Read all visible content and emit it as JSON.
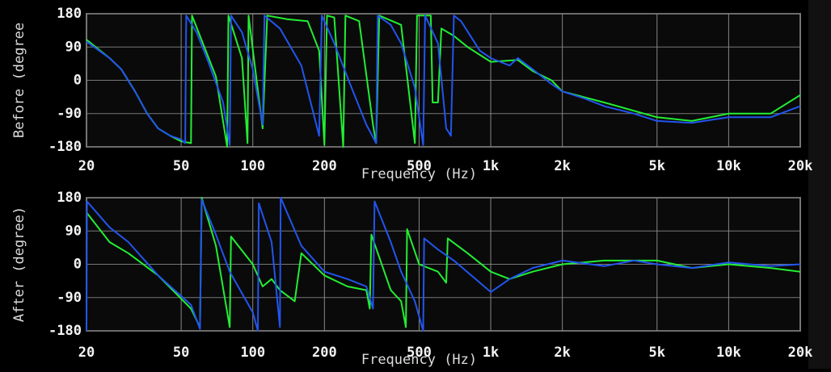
{
  "chart_data": [
    {
      "type": "line",
      "ylabel": "Before (degree",
      "xlabel": "Frequency (Hz)",
      "xscale": "log",
      "xlim": [
        20,
        20000
      ],
      "ylim": [
        -180,
        180
      ],
      "grid": true,
      "xticks": [
        20,
        50,
        100,
        200,
        500,
        {
          "value": 1000,
          "label": "1k"
        },
        {
          "value": 2000,
          "label": "2k"
        },
        {
          "value": 5000,
          "label": "5k"
        },
        {
          "value": 10000,
          "label": "10k"
        },
        {
          "value": 20000,
          "label": "20k"
        }
      ],
      "yticks": [
        -180,
        -90,
        0,
        90,
        180
      ],
      "series": [
        {
          "color": "#22ee33",
          "x": [
            20,
            25,
            28,
            32,
            36,
            40,
            45,
            50,
            55,
            55.5,
            60,
            70,
            78,
            79,
            90,
            95,
            96,
            110,
            115,
            140,
            170,
            190,
            200,
            205,
            220,
            240,
            245,
            280,
            320,
            330,
            340,
            420,
            480,
            490,
            560,
            570,
            600,
            620,
            700,
            800,
            1000,
            1300,
            1500,
            1800,
            2000,
            3000,
            5000,
            7000,
            10000,
            15000,
            20000
          ],
          "values": [
            110,
            60,
            30,
            -30,
            -90,
            -130,
            -150,
            -165,
            -170,
            175,
            120,
            10,
            -180,
            175,
            60,
            -170,
            175,
            -130,
            175,
            165,
            160,
            80,
            -175,
            175,
            170,
            -180,
            175,
            160,
            -120,
            -170,
            175,
            150,
            -170,
            175,
            175,
            -60,
            -60,
            140,
            120,
            90,
            50,
            55,
            25,
            0,
            -30,
            -60,
            -100,
            -110,
            -90,
            -90,
            -40
          ]
        },
        {
          "color": "#2255ee",
          "x": [
            20,
            25,
            28,
            32,
            36,
            40,
            45,
            50,
            52,
            52.5,
            58,
            65,
            75,
            80,
            81,
            90,
            100,
            110,
            112,
            130,
            160,
            190,
            195,
            220,
            260,
            300,
            330,
            335,
            380,
            420,
            480,
            520,
            530,
            600,
            650,
            680,
            700,
            750,
            900,
            1000,
            1200,
            1300,
            1500,
            1800,
            2000,
            2500,
            3000,
            4000,
            5000,
            7000,
            10000,
            15000,
            20000
          ],
          "values": [
            105,
            60,
            30,
            -30,
            -90,
            -130,
            -150,
            -160,
            -170,
            175,
            130,
            50,
            -60,
            -175,
            175,
            130,
            30,
            -120,
            175,
            140,
            40,
            -150,
            175,
            100,
            -20,
            -120,
            -170,
            175,
            150,
            100,
            -20,
            -175,
            175,
            100,
            -130,
            -150,
            175,
            160,
            80,
            60,
            40,
            60,
            30,
            -10,
            -30,
            -50,
            -70,
            -90,
            -110,
            -115,
            -100,
            -100,
            -70
          ]
        }
      ]
    },
    {
      "type": "line",
      "ylabel": "After (degree)",
      "xlabel": "Frequency (Hz)",
      "xscale": "log",
      "xlim": [
        20,
        20000
      ],
      "ylim": [
        -180,
        180
      ],
      "grid": true,
      "xticks": [
        20,
        50,
        100,
        200,
        500,
        {
          "value": 1000,
          "label": "1k"
        },
        {
          "value": 2000,
          "label": "2k"
        },
        {
          "value": 5000,
          "label": "5k"
        },
        {
          "value": 10000,
          "label": "10k"
        },
        {
          "value": 20000,
          "label": "20k"
        }
      ],
      "yticks": [
        -180,
        -90,
        0,
        90,
        180
      ],
      "series": [
        {
          "color": "#22ee33",
          "x": [
            20,
            25,
            30,
            40,
            55,
            60,
            61,
            70,
            80,
            81,
            100,
            110,
            120,
            130,
            150,
            160,
            200,
            250,
            300,
            310,
            315,
            380,
            420,
            440,
            445,
            500,
            600,
            650,
            660,
            800,
            1000,
            1200,
            1500,
            2000,
            3000,
            5000,
            7000,
            10000,
            15000,
            20000
          ],
          "values": [
            140,
            60,
            30,
            -30,
            -120,
            -170,
            180,
            50,
            -170,
            75,
            0,
            -60,
            -40,
            -70,
            -100,
            30,
            -30,
            -60,
            -70,
            -120,
            80,
            -70,
            -100,
            -170,
            95,
            0,
            -20,
            -50,
            70,
            30,
            -20,
            -40,
            -20,
            0,
            10,
            10,
            -10,
            0,
            -10,
            -20
          ]
        },
        {
          "color": "#2255ee",
          "x": [
            20,
            20.1,
            25,
            30,
            40,
            55,
            60,
            61,
            70,
            80,
            100,
            105,
            106,
            120,
            130,
            131,
            160,
            200,
            250,
            300,
            320,
            325,
            380,
            420,
            480,
            520,
            525,
            600,
            700,
            1000,
            1200,
            1500,
            2000,
            3000,
            4000,
            5000,
            7000,
            10000,
            15000,
            20000
          ],
          "values": [
            -180,
            170,
            100,
            60,
            -30,
            -110,
            -175,
            175,
            80,
            -20,
            -130,
            -180,
            165,
            60,
            -170,
            180,
            50,
            -20,
            -40,
            -60,
            -120,
            170,
            60,
            -20,
            -100,
            -180,
            70,
            40,
            10,
            -75,
            -40,
            -10,
            10,
            -5,
            10,
            0,
            -10,
            5,
            -5,
            0
          ]
        }
      ]
    }
  ]
}
